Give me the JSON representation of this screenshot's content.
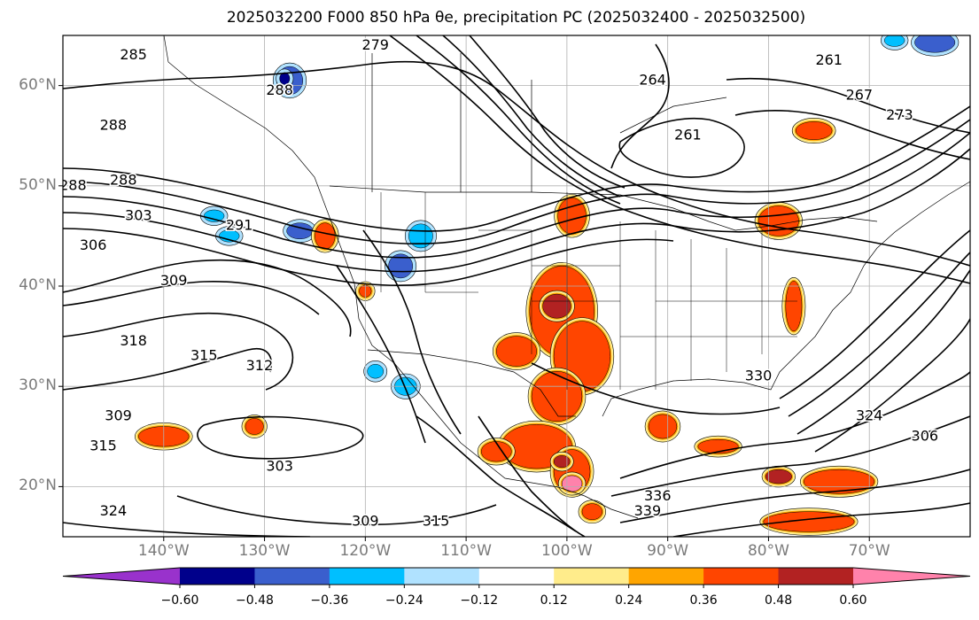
{
  "title": "2025032200 F000 850 hPa θe, precipitation PC (2025032400 - 2025032500)",
  "map": {
    "lat_labels": [
      "60°N",
      "50°N",
      "40°N",
      "30°N",
      "20°N"
    ],
    "lon_labels": [
      "140°W",
      "130°W",
      "120°W",
      "110°W",
      "100°W",
      "90°W",
      "80°W",
      "70°W"
    ],
    "extent": {
      "lon_min": -150,
      "lon_max": -60,
      "lat_min": 15,
      "lat_max": 65
    },
    "contour_labels": [
      {
        "text": "285",
        "lon": -143,
        "lat": 63
      },
      {
        "text": "279",
        "lon": -119,
        "lat": 64
      },
      {
        "text": "288",
        "lon": -128.5,
        "lat": 59.5
      },
      {
        "text": "288",
        "lon": -145,
        "lat": 56
      },
      {
        "text": "264",
        "lon": -91.5,
        "lat": 60.5
      },
      {
        "text": "261",
        "lon": -74,
        "lat": 62.5
      },
      {
        "text": "267",
        "lon": -71,
        "lat": 59
      },
      {
        "text": "273",
        "lon": -67,
        "lat": 57
      },
      {
        "text": "261",
        "lon": -88,
        "lat": 55
      },
      {
        "text": "288",
        "lon": -144,
        "lat": 50.5
      },
      {
        "text": "288",
        "lon": -149,
        "lat": 50
      },
      {
        "text": "303",
        "lon": -142.5,
        "lat": 47
      },
      {
        "text": "291",
        "lon": -132.5,
        "lat": 46
      },
      {
        "text": "309",
        "lon": -139,
        "lat": 40.5
      },
      {
        "text": "306",
        "lon": -147,
        "lat": 44
      },
      {
        "text": "318",
        "lon": -143,
        "lat": 34.5
      },
      {
        "text": "315",
        "lon": -136,
        "lat": 33
      },
      {
        "text": "312",
        "lon": -130.5,
        "lat": 32
      },
      {
        "text": "309",
        "lon": -144.5,
        "lat": 27
      },
      {
        "text": "315",
        "lon": -146,
        "lat": 24
      },
      {
        "text": "303",
        "lon": -128.5,
        "lat": 22
      },
      {
        "text": "309",
        "lon": -120,
        "lat": 16.5
      },
      {
        "text": "315",
        "lon": -113,
        "lat": 16.5
      },
      {
        "text": "324",
        "lon": -145,
        "lat": 17.5
      },
      {
        "text": "330",
        "lon": -81,
        "lat": 31
      },
      {
        "text": "324",
        "lon": -70,
        "lat": 27
      },
      {
        "text": "306",
        "lon": -64.5,
        "lat": 25
      },
      {
        "text": "339",
        "lon": -92,
        "lat": 17.5
      },
      {
        "text": "336",
        "lon": -91,
        "lat": 19
      }
    ]
  },
  "colorbar": {
    "ticks": [
      "−0.60",
      "−0.48",
      "−0.36",
      "−0.24",
      "−0.12",
      "0.12",
      "0.24",
      "0.36",
      "0.48",
      "0.60"
    ],
    "colors": [
      "#9932cc",
      "#00008b",
      "#3a5fcd",
      "#00bfff",
      "#b0e2ff",
      "#ffffff",
      "#ffec8b",
      "#ffa500",
      "#ff4500",
      "#b22222",
      "#ff82ab"
    ]
  },
  "precip_blobs": [
    {
      "lon": -100.5,
      "lat": 37.5,
      "rx": 3.2,
      "ry": 4.5,
      "level": 8
    },
    {
      "lon": -101,
      "lat": 38,
      "rx": 1.4,
      "ry": 1.2,
      "level": 9
    },
    {
      "lon": -98.5,
      "lat": 33,
      "rx": 2.8,
      "ry": 3.5,
      "level": 8
    },
    {
      "lon": -105,
      "lat": 33.5,
      "rx": 2.0,
      "ry": 1.5,
      "level": 8
    },
    {
      "lon": -101,
      "lat": 29,
      "rx": 2.5,
      "ry": 2.5,
      "level": 8
    },
    {
      "lon": -99.5,
      "lat": 47,
      "rx": 1.4,
      "ry": 1.8,
      "level": 8
    },
    {
      "lon": -103,
      "lat": 24,
      "rx": 3.5,
      "ry": 2.2,
      "level": 8
    },
    {
      "lon": -99.5,
      "lat": 21.5,
      "rx": 1.8,
      "ry": 2.2,
      "level": 8
    },
    {
      "lon": -99.5,
      "lat": 20.3,
      "rx": 1.0,
      "ry": 0.8,
      "level": 10
    },
    {
      "lon": -100.5,
      "lat": 22.5,
      "rx": 0.8,
      "ry": 0.6,
      "level": 9
    },
    {
      "lon": -90.5,
      "lat": 26,
      "rx": 1.4,
      "ry": 1.2,
      "level": 8
    },
    {
      "lon": -75.5,
      "lat": 55.5,
      "rx": 1.8,
      "ry": 0.9,
      "level": 8
    },
    {
      "lon": -79,
      "lat": 46.5,
      "rx": 2.0,
      "ry": 1.5,
      "level": 8
    },
    {
      "lon": -77.5,
      "lat": 38,
      "rx": 0.8,
      "ry": 2.5,
      "level": 8
    },
    {
      "lon": -73,
      "lat": 20.5,
      "rx": 3.5,
      "ry": 1.2,
      "level": 8
    },
    {
      "lon": -79,
      "lat": 21,
      "rx": 1.3,
      "ry": 0.7,
      "level": 9
    },
    {
      "lon": -116.5,
      "lat": 42,
      "rx": 1.2,
      "ry": 1.2,
      "level": 2
    },
    {
      "lon": -114.5,
      "lat": 45,
      "rx": 1.2,
      "ry": 1.2,
      "level": 3
    },
    {
      "lon": -126.5,
      "lat": 45.5,
      "rx": 1.3,
      "ry": 0.8,
      "level": 2
    },
    {
      "lon": -127.5,
      "lat": 60.5,
      "rx": 1.3,
      "ry": 1.4,
      "level": 2
    },
    {
      "lon": -128,
      "lat": 60.7,
      "rx": 0.5,
      "ry": 0.6,
      "level": 1
    },
    {
      "lon": -135,
      "lat": 47,
      "rx": 1.0,
      "ry": 0.6,
      "level": 3
    },
    {
      "lon": -133.5,
      "lat": 45,
      "rx": 1.0,
      "ry": 0.6,
      "level": 3
    },
    {
      "lon": -63.5,
      "lat": 64.3,
      "rx": 2.0,
      "ry": 1.0,
      "level": 2
    },
    {
      "lon": -67.5,
      "lat": 64.5,
      "rx": 1.0,
      "ry": 0.6,
      "level": 3
    },
    {
      "lon": -116,
      "lat": 30,
      "rx": 1.1,
      "ry": 0.9,
      "level": 3
    },
    {
      "lon": -119,
      "lat": 31.5,
      "rx": 0.8,
      "ry": 0.7,
      "level": 3
    },
    {
      "lon": -124,
      "lat": 45,
      "rx": 1.0,
      "ry": 1.3,
      "level": 8
    },
    {
      "lon": -120,
      "lat": 39.5,
      "rx": 0.6,
      "ry": 0.6,
      "level": 8
    },
    {
      "lon": -131,
      "lat": 26,
      "rx": 0.9,
      "ry": 0.8,
      "level": 8
    },
    {
      "lon": -140,
      "lat": 25,
      "rx": 2.5,
      "ry": 1.0,
      "level": 8
    },
    {
      "lon": -97.5,
      "lat": 17.5,
      "rx": 1.0,
      "ry": 0.8,
      "level": 8
    },
    {
      "lon": -107,
      "lat": 23.5,
      "rx": 1.5,
      "ry": 1.0,
      "level": 8
    },
    {
      "lon": -76,
      "lat": 16.5,
      "rx": 4.5,
      "ry": 1.0,
      "level": 8
    },
    {
      "lon": -85,
      "lat": 24,
      "rx": 2.0,
      "ry": 0.7,
      "level": 8
    }
  ]
}
